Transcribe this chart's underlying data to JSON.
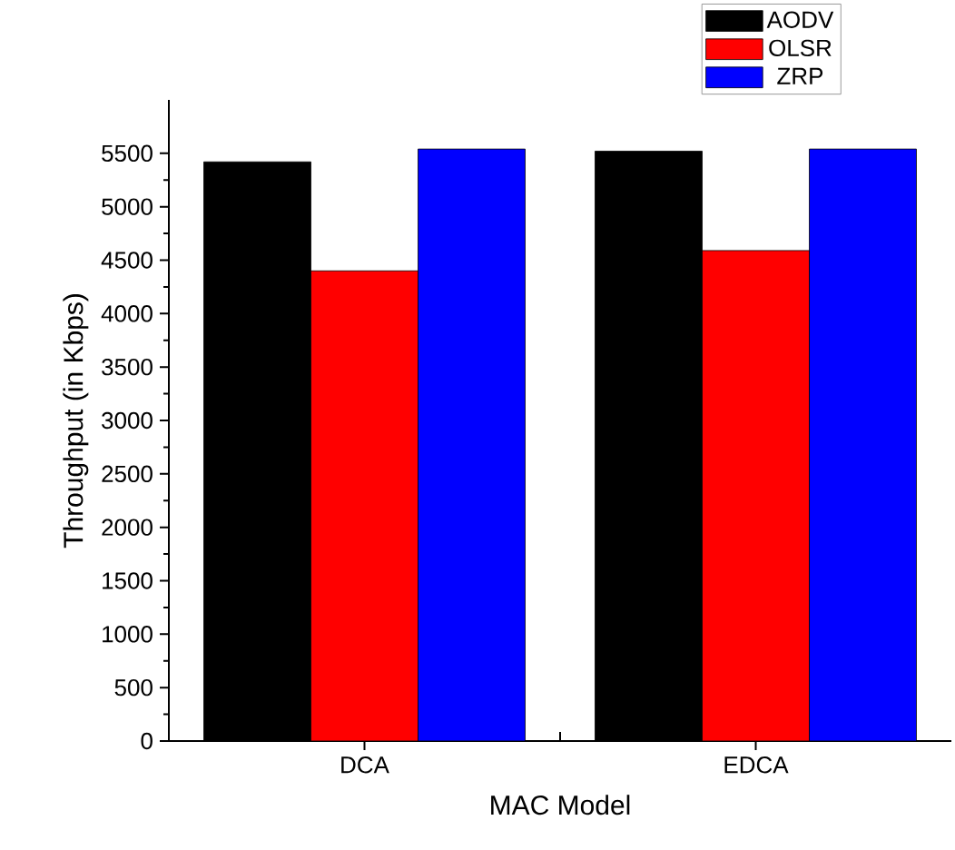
{
  "chart_data": {
    "type": "bar",
    "xlabel": "MAC Model",
    "ylabel": "Throughput (in Kbps)",
    "categories": [
      "DCA",
      "EDCA"
    ],
    "series": [
      {
        "name": "AODV",
        "color": "#000000",
        "values": [
          5420,
          5520
        ]
      },
      {
        "name": "OLSR",
        "color": "#ff0000",
        "values": [
          4400,
          4590
        ]
      },
      {
        "name": "ZRP",
        "color": "#0000ff",
        "values": [
          5540,
          5540
        ]
      }
    ],
    "ylim": [
      0,
      6000
    ],
    "yticks": [
      0,
      500,
      1000,
      1500,
      2000,
      2500,
      3000,
      3500,
      4000,
      4500,
      5000,
      5500
    ],
    "legend": "top right",
    "grid": false
  }
}
